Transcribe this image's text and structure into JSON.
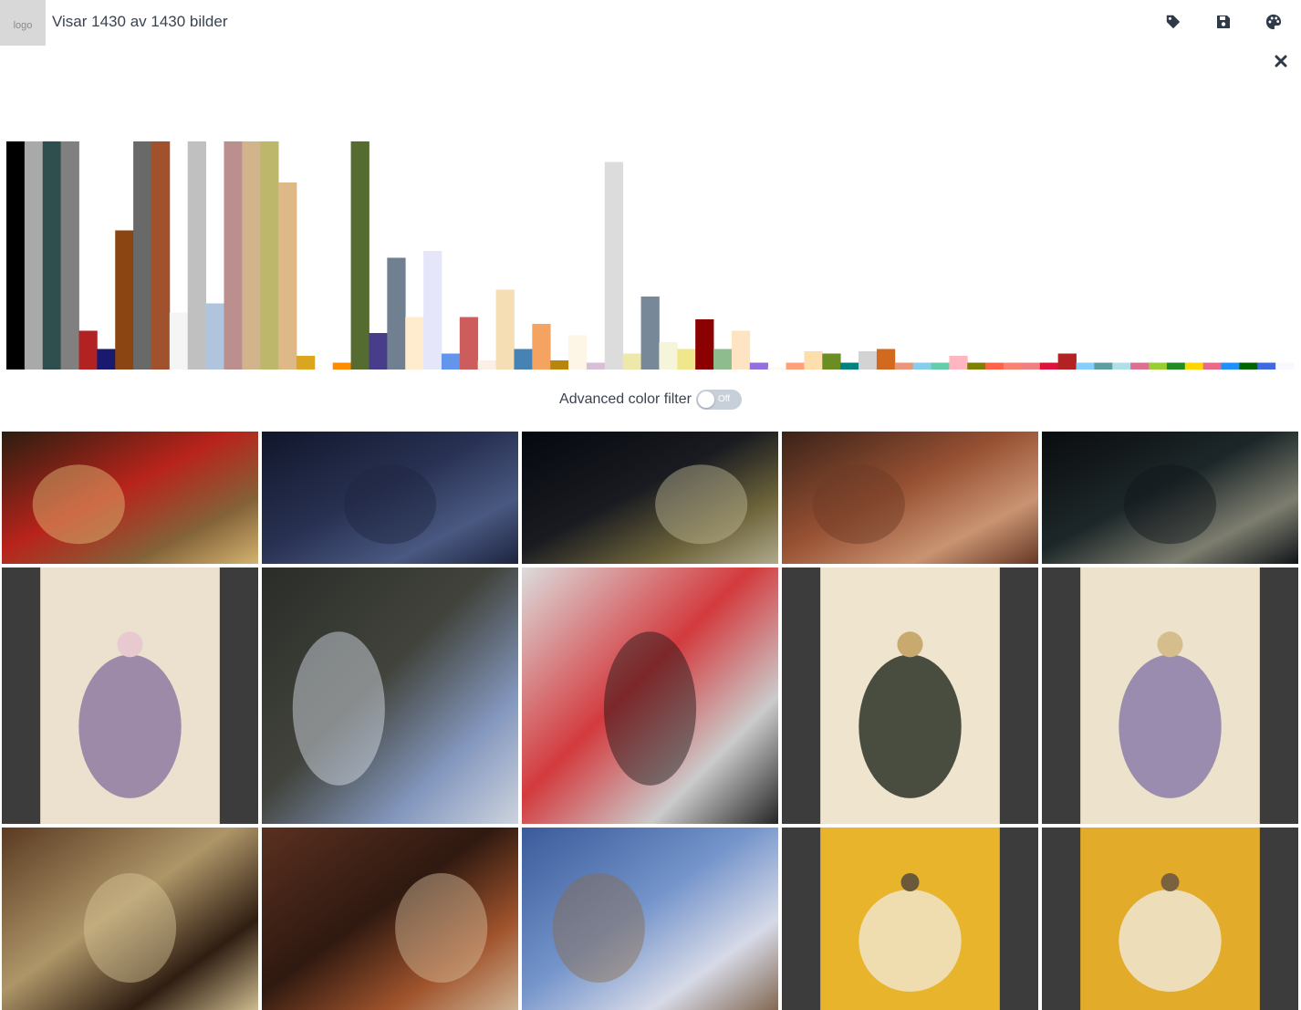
{
  "app": {
    "logo_text": "logo",
    "result_count": "Visar 1430 av 1430 bilder"
  },
  "toolbar": {
    "icons": [
      "tag-icon",
      "save-icon",
      "palette-icon"
    ],
    "close_icon": "close-icon"
  },
  "histogram": {
    "max_value": 100,
    "bars": [
      {
        "color": "#000000",
        "value": 100
      },
      {
        "color": "#a9a9a9",
        "value": 100
      },
      {
        "color": "#2f4f4f",
        "value": 100
      },
      {
        "color": "#808080",
        "value": 100
      },
      {
        "color": "#b22222",
        "value": 17
      },
      {
        "color": "#191970",
        "value": 9
      },
      {
        "color": "#8b4513",
        "value": 61
      },
      {
        "color": "#696969",
        "value": 100
      },
      {
        "color": "#a0522d",
        "value": 100
      },
      {
        "color": "#f5f5f5",
        "value": 25
      },
      {
        "color": "#c0c0c0",
        "value": 100
      },
      {
        "color": "#b0c4de",
        "value": 29
      },
      {
        "color": "#bc8f8f",
        "value": 100
      },
      {
        "color": "#d2b48c",
        "value": 100
      },
      {
        "color": "#bdb76b",
        "value": 100
      },
      {
        "color": "#deb887",
        "value": 82
      },
      {
        "color": "#daa520",
        "value": 6
      },
      {
        "color": "#ffffff",
        "value": 0
      },
      {
        "color": "#ff8c00",
        "value": 3
      },
      {
        "color": "#556b2f",
        "value": 100
      },
      {
        "color": "#483d8b",
        "value": 16
      },
      {
        "color": "#708090",
        "value": 49
      },
      {
        "color": "#ffebcd",
        "value": 23
      },
      {
        "color": "#e6e6fa",
        "value": 52
      },
      {
        "color": "#6495ed",
        "value": 7
      },
      {
        "color": "#cd5c5c",
        "value": 23
      },
      {
        "color": "#faf0e6",
        "value": 4
      },
      {
        "color": "#f5deb3",
        "value": 35
      },
      {
        "color": "#4682b4",
        "value": 9
      },
      {
        "color": "#f4a460",
        "value": 20
      },
      {
        "color": "#b8860b",
        "value": 4
      },
      {
        "color": "#fdf5e6",
        "value": 15
      },
      {
        "color": "#d8bfd8",
        "value": 3
      },
      {
        "color": "#dcdcdc",
        "value": 91
      },
      {
        "color": "#eee8aa",
        "value": 7
      },
      {
        "color": "#778899",
        "value": 32
      },
      {
        "color": "#f5f5dc",
        "value": 12
      },
      {
        "color": "#f0e68c",
        "value": 9
      },
      {
        "color": "#8b0000",
        "value": 22
      },
      {
        "color": "#8fbc8f",
        "value": 9
      },
      {
        "color": "#ffe4c4",
        "value": 17
      },
      {
        "color": "#9370db",
        "value": 3
      },
      {
        "color": "#fff8f0",
        "value": 1
      },
      {
        "color": "#ffa07a",
        "value": 3
      },
      {
        "color": "#ffdead",
        "value": 8
      },
      {
        "color": "#6b8e23",
        "value": 7
      },
      {
        "color": "#008080",
        "value": 3
      },
      {
        "color": "#d3d3d3",
        "value": 8
      },
      {
        "color": "#d2691e",
        "value": 9
      },
      {
        "color": "#e9967a",
        "value": 3
      },
      {
        "color": "#87ceeb",
        "value": 3
      },
      {
        "color": "#66cdaa",
        "value": 3
      },
      {
        "color": "#ffb6c1",
        "value": 6
      },
      {
        "color": "#808000",
        "value": 3
      },
      {
        "color": "#ff6347",
        "value": 3
      },
      {
        "color": "#fa8072",
        "value": 3
      },
      {
        "color": "#f08080",
        "value": 3
      },
      {
        "color": "#dc143c",
        "value": 3
      },
      {
        "color": "#b22222",
        "value": 7
      },
      {
        "color": "#87cefa",
        "value": 3
      },
      {
        "color": "#5f9ea0",
        "value": 3
      },
      {
        "color": "#b0e0e6",
        "value": 3
      },
      {
        "color": "#db7093",
        "value": 3
      },
      {
        "color": "#9acd32",
        "value": 3
      },
      {
        "color": "#228b22",
        "value": 3
      },
      {
        "color": "#ffd700",
        "value": 3
      },
      {
        "color": "#e9698a",
        "value": 3
      },
      {
        "color": "#1e90ff",
        "value": 3
      },
      {
        "color": "#006400",
        "value": 3
      },
      {
        "color": "#4169e1",
        "value": 3
      },
      {
        "color": "#f8f8ff",
        "value": 3
      }
    ]
  },
  "filter": {
    "label": "Advanced color filter",
    "toggle_state": "Off"
  },
  "images": [
    {
      "name": "temple-street-photo",
      "colors": [
        "#2a1e10",
        "#c8241c",
        "#8d6a3d",
        "#e6c37a"
      ]
    },
    {
      "name": "dark-rocks-photo",
      "colors": [
        "#10162a",
        "#2b3457",
        "#50608b",
        "#1e2540"
      ]
    },
    {
      "name": "dark-mask-photo",
      "colors": [
        "#060810",
        "#1b1d22",
        "#7a6f40",
        "#c2bb9a"
      ]
    },
    {
      "name": "carved-figures-photo",
      "colors": [
        "#3a2218",
        "#a25636",
        "#d9a07c",
        "#6b3a26"
      ]
    },
    {
      "name": "dark-tree-silhouette-photo",
      "colors": [
        "#0a0c0e",
        "#1f2a2c",
        "#8a8a7a",
        "#11161a"
      ]
    },
    {
      "name": "fashion-plate-gowns",
      "colors": [
        "#3c3c3c",
        "#ece1cf",
        "#8f7aa1",
        "#e7c9cf"
      ]
    },
    {
      "name": "carved-pole-sky-photo",
      "colors": [
        "#2a2c28",
        "#44463e",
        "#8ea3cf",
        "#dfe6f2"
      ]
    },
    {
      "name": "cuprinol-paint-can",
      "colors": [
        "#dcdcdc",
        "#d2282c",
        "#c9c9c9",
        "#111111"
      ]
    },
    {
      "name": "fashion-plate-gentleman",
      "colors": [
        "#3c3c3c",
        "#efe4ce",
        "#2c3226",
        "#c8a96e"
      ]
    },
    {
      "name": "fashion-plate-ladies",
      "colors": [
        "#3c3c3c",
        "#ede2cc",
        "#8a7ca8",
        "#d6bd8c"
      ]
    },
    {
      "name": "dancers-grass-skirts-photo",
      "colors": [
        "#5a3a22",
        "#b8a070",
        "#2a1a10",
        "#d9c89a"
      ]
    },
    {
      "name": "hands-carved-object-photo",
      "colors": [
        "#5a3020",
        "#2a160e",
        "#a8582e",
        "#d9c0a0"
      ]
    },
    {
      "name": "ship-deck-nuns-photo",
      "colors": [
        "#3a5a9a",
        "#7a9ad0",
        "#e8e8f0",
        "#8a6a4a"
      ]
    },
    {
      "name": "costume-sketch-yellow-1",
      "colors": [
        "#3c3c3c",
        "#e8b42c",
        "#f0e4c8",
        "#6a5a3a"
      ]
    },
    {
      "name": "costume-sketch-yellow-2",
      "colors": [
        "#3c3c3c",
        "#e2ac2a",
        "#efe6d2",
        "#7a6240"
      ]
    }
  ]
}
